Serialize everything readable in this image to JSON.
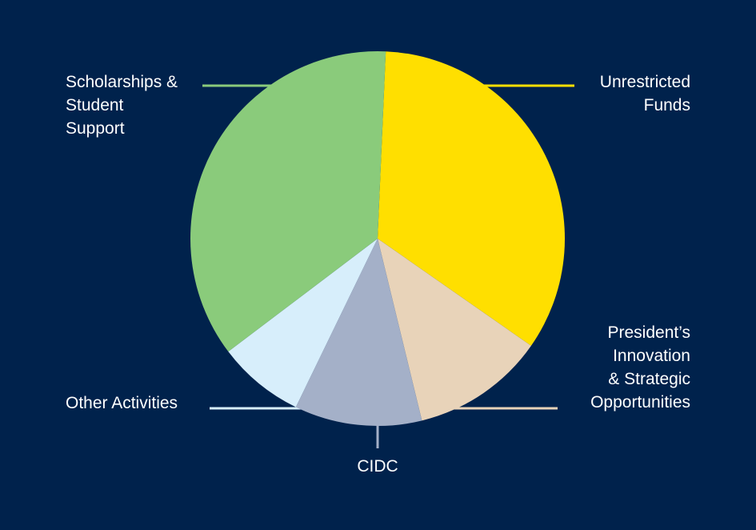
{
  "background": "#00224c",
  "chart_data": {
    "type": "pie",
    "title": "",
    "series": [
      {
        "slices": [
          {
            "label": "Unrestricted Funds",
            "label_lines": [
              "Unrestricted",
              "Funds"
            ],
            "value": 34.0,
            "color": "#ffdf00"
          },
          {
            "label": "President’s Innovation & Strategic Opportunities",
            "label_lines": [
              "President’s",
              "Innovation",
              "& Strategic",
              "Opportunities"
            ],
            "value": 11.5,
            "color": "#e8d3b9"
          },
          {
            "label": "CIDC",
            "label_lines": [
              "CIDC"
            ],
            "value": 11.0,
            "color": "#a4b0c8"
          },
          {
            "label": "Other Activities",
            "label_lines": [
              "Other Activities"
            ],
            "value": 7.5,
            "color": "#d7eefb"
          },
          {
            "label": "Scholarships & Student Support",
            "label_lines": [
              "Scholarships &",
              "Student",
              "Support"
            ],
            "value": 36.0,
            "color": "#8acb7b"
          }
        ]
      }
    ],
    "legend": "callout labels around pie"
  }
}
